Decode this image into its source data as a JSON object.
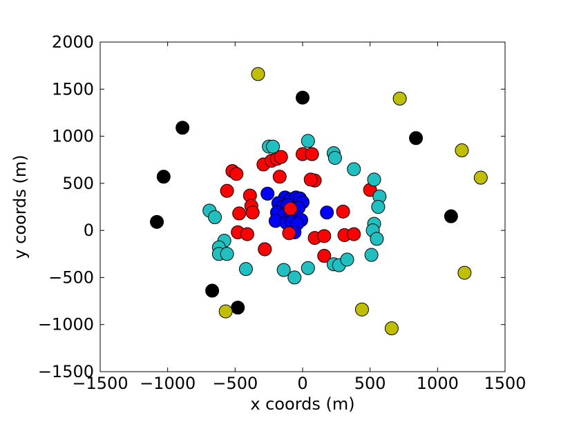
{
  "chart_data": {
    "type": "scatter",
    "title": "",
    "xlabel": "x coords (m)",
    "ylabel": "y coords (m)",
    "xlim": [
      -1500,
      1500
    ],
    "ylim": [
      -1500,
      2000
    ],
    "xticks": [
      -1500,
      -1000,
      -500,
      0,
      500,
      1000,
      1500
    ],
    "yticks": [
      -1500,
      -1000,
      -500,
      0,
      500,
      1000,
      1500,
      2000
    ],
    "xtick_labels": [
      "−1500",
      "−1000",
      "−500",
      "0",
      "500",
      "1000",
      "1500"
    ],
    "ytick_labels": [
      "−1500",
      "−1000",
      "−500",
      "0",
      "500",
      "1000",
      "1500",
      "2000"
    ],
    "grid": false,
    "legend": "none",
    "series": [
      {
        "color": "#0000ff",
        "x": [
          -260,
          180,
          -130,
          -90,
          -50,
          -20,
          0,
          -180,
          -150,
          -110,
          -60,
          -30,
          -190,
          -140,
          -90,
          -50,
          -10,
          -200,
          -120,
          -80,
          -40,
          -60
        ],
        "y": [
          390,
          190,
          350,
          330,
          350,
          340,
          300,
          290,
          250,
          270,
          220,
          240,
          190,
          160,
          140,
          150,
          110,
          100,
          80,
          90,
          70,
          -20
        ]
      },
      {
        "color": "#ff0000",
        "x": [
          -520,
          -490,
          -290,
          -230,
          -190,
          -160,
          -170,
          0,
          70,
          90,
          -560,
          -390,
          -380,
          -470,
          -370,
          -480,
          -410,
          -280,
          -90,
          -100,
          -280,
          60,
          90,
          310,
          300,
          380,
          160,
          160,
          500
        ],
        "y": [
          630,
          600,
          700,
          740,
          760,
          780,
          570,
          810,
          810,
          530,
          420,
          370,
          260,
          180,
          190,
          -20,
          -40,
          -200,
          230,
          -30,
          -200,
          540,
          -80,
          -50,
          200,
          -40,
          -60,
          -270,
          430
        ]
      },
      {
        "color": "#20c0c0",
        "x": [
          -250,
          -220,
          40,
          230,
          240,
          380,
          530,
          570,
          560,
          530,
          520,
          550,
          -690,
          -650,
          -580,
          -620,
          -620,
          -560,
          -420,
          -140,
          -60,
          40,
          230,
          270,
          330,
          510
        ],
        "y": [
          890,
          890,
          950,
          820,
          770,
          650,
          540,
          360,
          250,
          70,
          0,
          -90,
          210,
          140,
          -110,
          -180,
          -250,
          -250,
          -410,
          -420,
          -500,
          -400,
          -360,
          -370,
          -310,
          -260
        ]
      },
      {
        "color": "#000000",
        "x": [
          0,
          -890,
          -1030,
          840,
          -1080,
          1100,
          -670,
          -480
        ],
        "y": [
          1410,
          1090,
          570,
          980,
          90,
          150,
          -640,
          -820
        ]
      },
      {
        "color": "#bfbf00",
        "x": [
          -330,
          720,
          1180,
          1320,
          1200,
          -570,
          440,
          660
        ],
        "y": [
          1660,
          1400,
          850,
          560,
          -450,
          -860,
          -840,
          -1040
        ]
      }
    ]
  }
}
